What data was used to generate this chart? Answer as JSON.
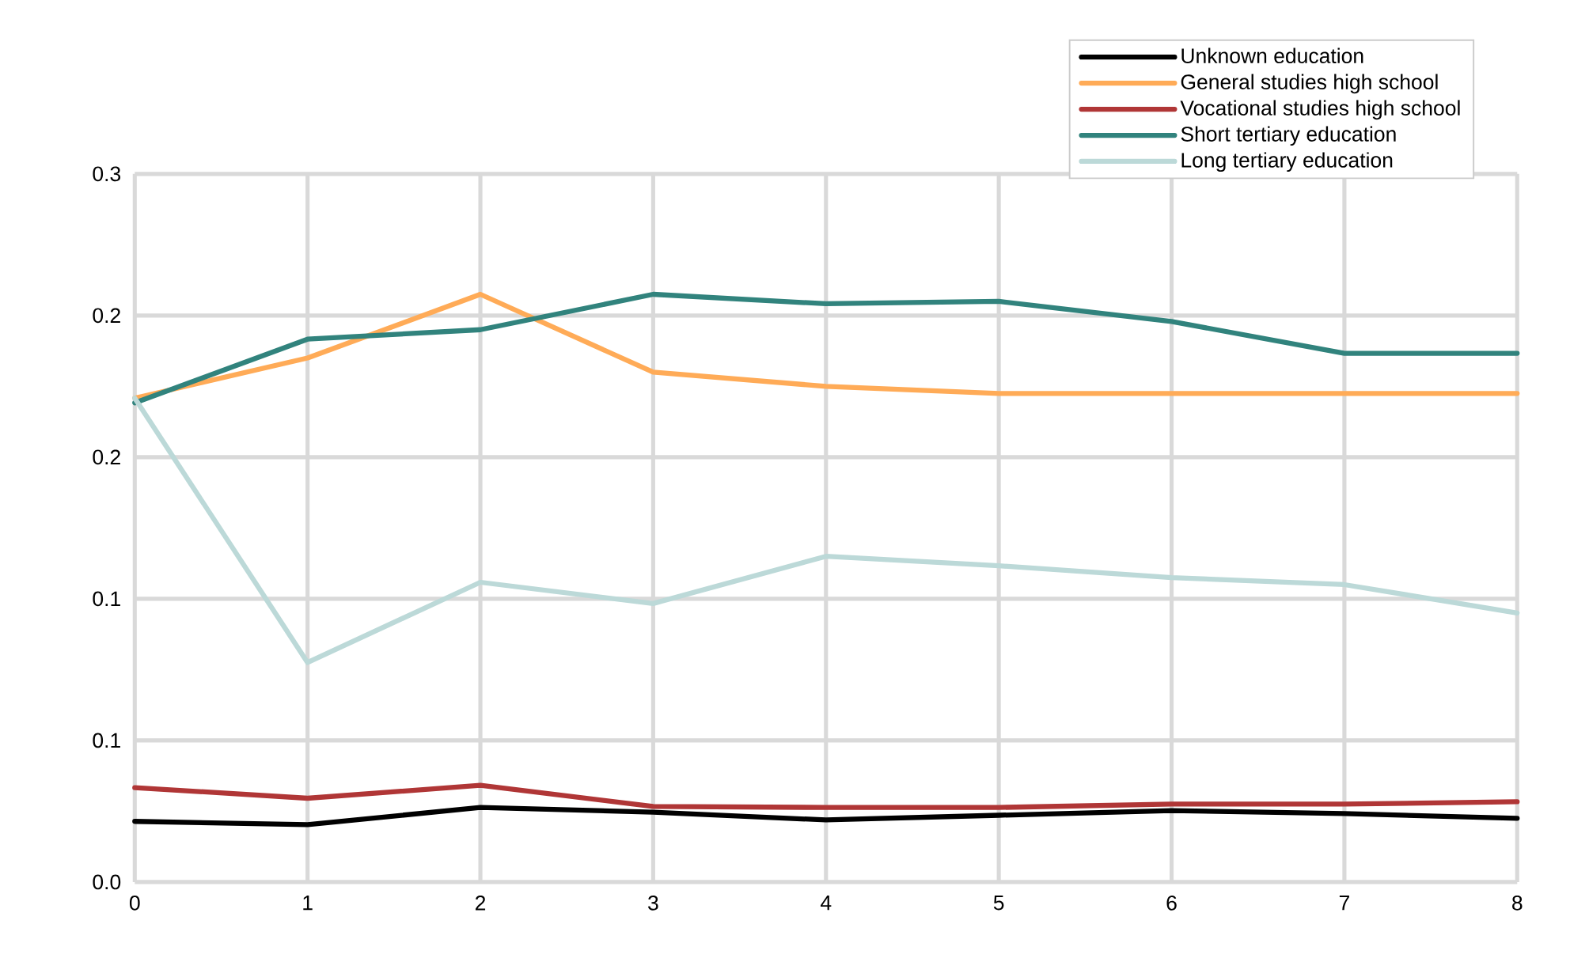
{
  "chart_data": {
    "type": "line",
    "x": [
      0,
      1,
      2,
      3,
      4,
      5,
      6,
      7,
      8
    ],
    "series": [
      {
        "name": "Unknown education",
        "color": "#000000",
        "values": [
          0.0257,
          0.0243,
          0.0316,
          0.0296,
          0.0263,
          0.0283,
          0.0303,
          0.029,
          0.027
        ]
      },
      {
        "name": "General studies high school",
        "color": "#ffab57",
        "values": [
          0.205,
          0.222,
          0.249,
          0.216,
          0.21,
          0.207,
          0.207,
          0.207,
          0.207
        ]
      },
      {
        "name": "Vocational studies high school",
        "color": "#b03636",
        "values": [
          0.04,
          0.0355,
          0.041,
          0.032,
          0.0316,
          0.0316,
          0.033,
          0.033,
          0.034
        ]
      },
      {
        "name": "Short tertiary education",
        "color": "#31837d",
        "values": [
          0.203,
          0.23,
          0.234,
          0.249,
          0.245,
          0.246,
          0.2375,
          0.224,
          0.224
        ]
      },
      {
        "name": "Long tertiary education",
        "color": "#bcd9d8",
        "values": [
          0.205,
          0.093,
          0.127,
          0.118,
          0.138,
          0.134,
          0.129,
          0.126,
          0.114
        ]
      }
    ],
    "xlim": [
      0,
      8
    ],
    "xticks": [
      0,
      1,
      2,
      3,
      4,
      5,
      6,
      7,
      8
    ],
    "ylim": [
      0,
      0.3
    ],
    "yticks": [
      {
        "value": 0,
        "label": "0.0"
      },
      {
        "value": 0.06,
        "label": "0.1"
      },
      {
        "value": 0.12,
        "label": "0.1"
      },
      {
        "value": 0.18,
        "label": "0.2"
      },
      {
        "value": 0.24,
        "label": "0.2"
      },
      {
        "value": 0.3,
        "label": "0.3"
      }
    ],
    "grid": true,
    "legend": "top right",
    "marker": "none",
    "line_style": "solid"
  }
}
